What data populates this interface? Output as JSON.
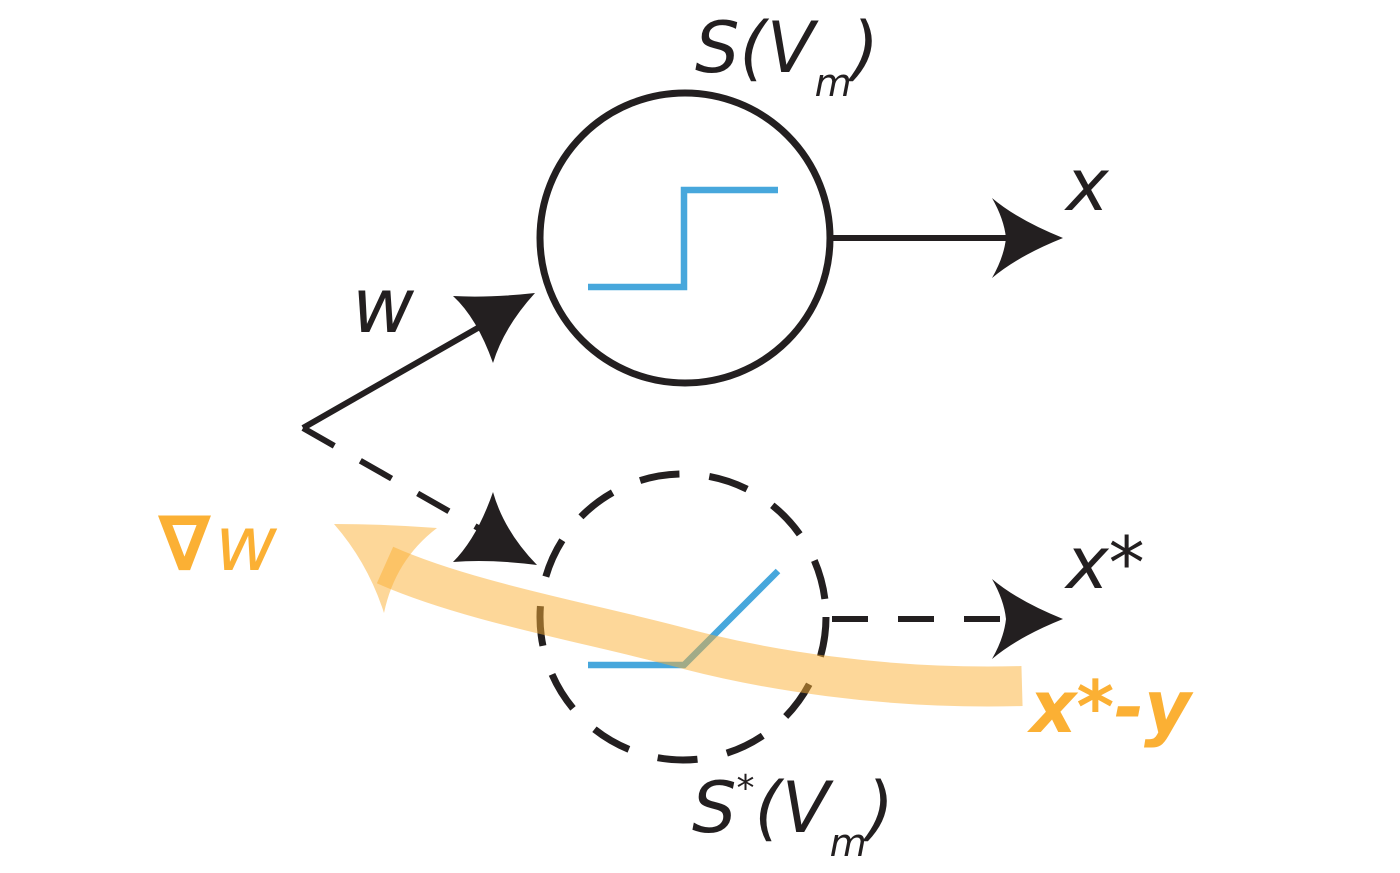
{
  "labels": {
    "real_activation": {
      "main": "S(V",
      "sub": "m",
      "close": ")"
    },
    "surrogate_activation": {
      "main": "S",
      "star": "*",
      "open": "(V",
      "sub": "m",
      "close": ")"
    },
    "weight": "w",
    "output": "x",
    "surrogate_output": "x*",
    "gradient_symbol": "∇",
    "gradient_var": "w",
    "error": "x*-y"
  },
  "colors": {
    "ink": "#231f20",
    "step": "#47a7dc",
    "gradient": "#fbb034",
    "gradient_band": "#fdd99b"
  },
  "icons": {
    "real_neuron": "step-function-icon",
    "surrogate_neuron": "ramp-function-icon"
  }
}
